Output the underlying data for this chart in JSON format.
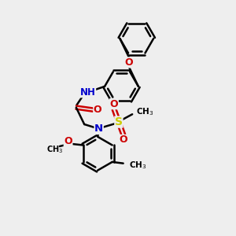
{
  "bg_color": "#eeeeee",
  "bond_color": "#000000",
  "N_color": "#0000cc",
  "O_color": "#cc0000",
  "S_color": "#cccc00",
  "lw": 1.8,
  "figsize": [
    3.0,
    3.0
  ],
  "dpi": 100,
  "xlim": [
    0,
    10
  ],
  "ylim": [
    0,
    10
  ]
}
